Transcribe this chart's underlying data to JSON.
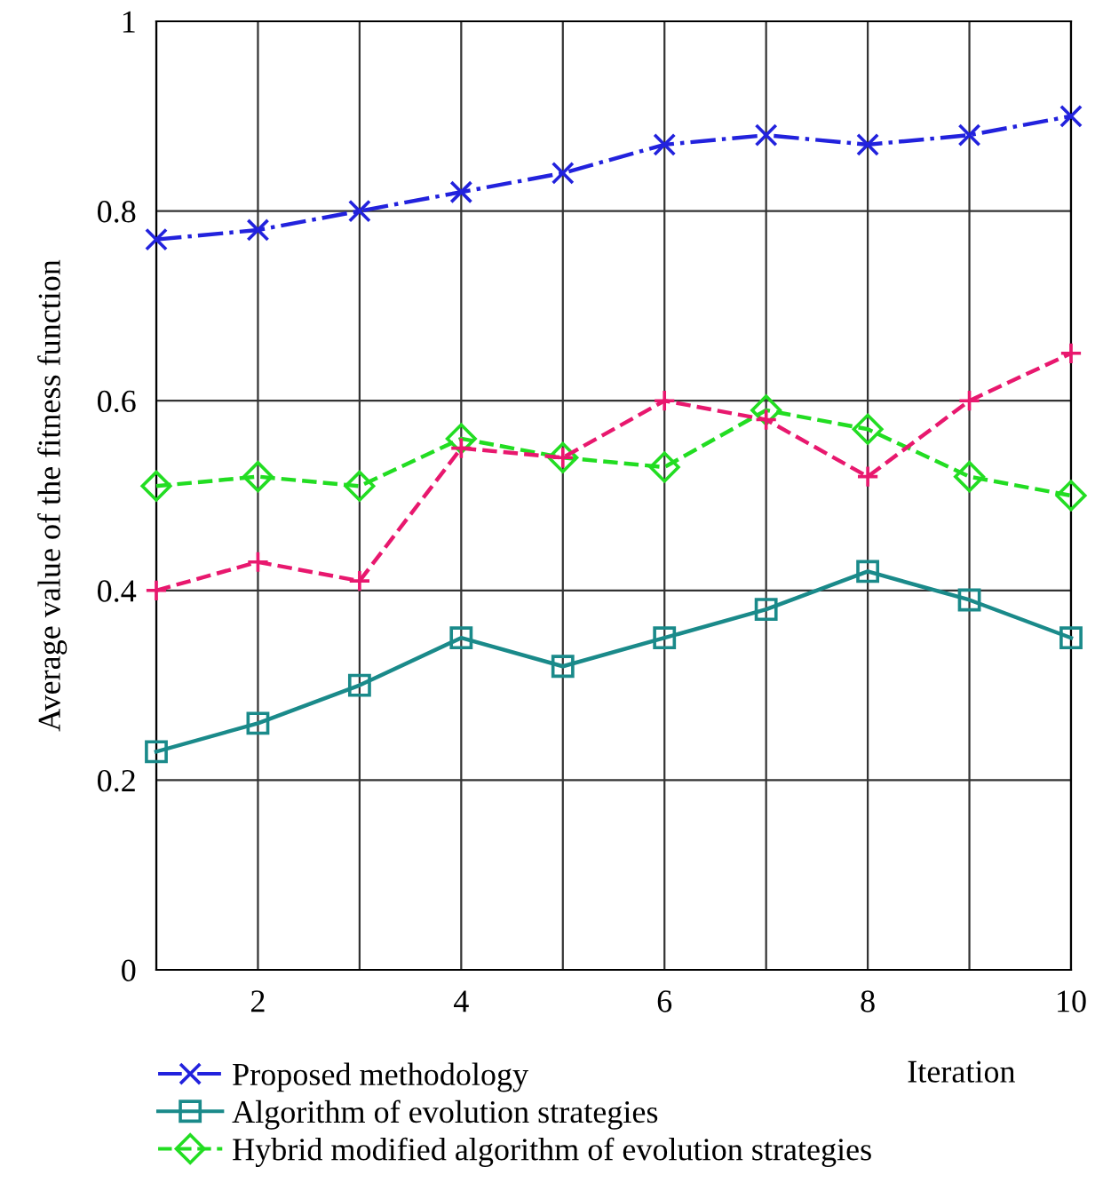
{
  "chart_data": {
    "type": "line",
    "xlabel": "Iteration",
    "ylabel": "Average value of the fitness function",
    "x": [
      1,
      2,
      3,
      4,
      5,
      6,
      7,
      8,
      9,
      10
    ],
    "xlim": [
      1,
      10
    ],
    "ylim": [
      0,
      1
    ],
    "xticks": [
      {
        "value": 1,
        "label": null
      },
      2,
      {
        "value": 3,
        "label": null
      },
      4,
      {
        "value": 5,
        "label": null
      },
      6,
      {
        "value": 7,
        "label": null
      },
      8,
      {
        "value": 9,
        "label": null
      },
      10
    ],
    "yticks": [
      0,
      0.2,
      0.4,
      0.6,
      0.8,
      1
    ],
    "grid": true,
    "legend": "bottom left",
    "series": [
      {
        "name": "Proposed methodology",
        "color": "#2222dd",
        "marker": "cross",
        "line_style": "dashdot",
        "values": [
          0.77,
          0.78,
          0.8,
          0.82,
          0.84,
          0.87,
          0.88,
          0.87,
          0.88,
          0.9
        ]
      },
      {
        "name": "Algorithm of evolution strategies",
        "color": "#1a8a8a",
        "marker": "square",
        "line_style": "solid",
        "values": [
          0.23,
          0.26,
          0.3,
          0.35,
          0.32,
          0.35,
          0.38,
          0.42,
          0.39,
          0.35
        ]
      },
      {
        "name": "Hybrid modified algorithm of evolution strategies",
        "color": "#22dd22",
        "marker": "diamond",
        "line_style": "dashed",
        "values": [
          0.51,
          0.52,
          0.51,
          0.56,
          0.54,
          0.53,
          0.59,
          0.57,
          0.52,
          0.5
        ]
      },
      {
        "name": null,
        "color": "#e8186e",
        "marker": "plus",
        "line_style": "dashed",
        "values": [
          0.4,
          0.43,
          0.41,
          0.55,
          0.54,
          0.6,
          0.58,
          0.52,
          0.6,
          0.65
        ]
      }
    ]
  }
}
